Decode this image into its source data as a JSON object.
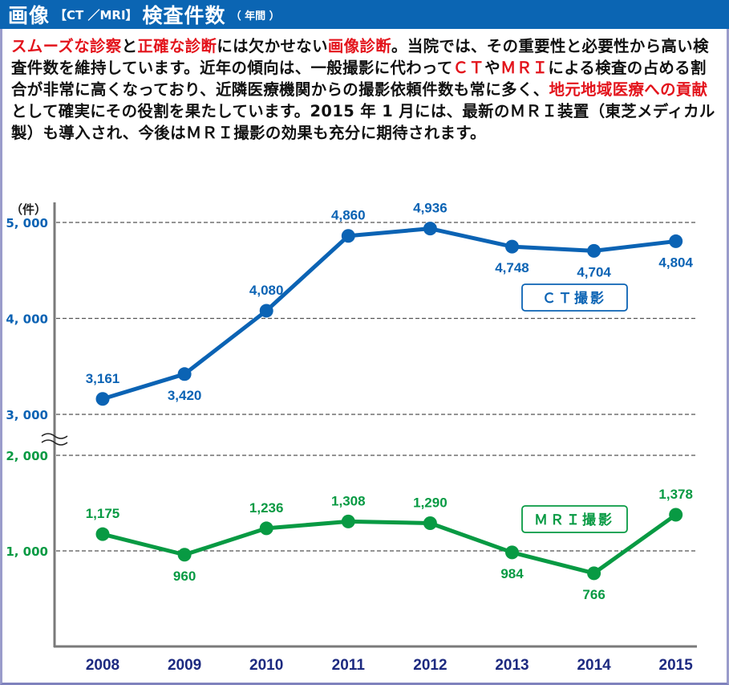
{
  "header": {
    "title_main": "画像",
    "title_modality": "【CT ／MRI】",
    "title_main2": "検査件数",
    "title_period": "（ 年間 ）"
  },
  "paragraph": [
    {
      "text": "スムーズな診察",
      "highlight": true
    },
    {
      "text": "と",
      "highlight": false
    },
    {
      "text": "正確な診断",
      "highlight": true
    },
    {
      "text": "には欠かせない",
      "highlight": false
    },
    {
      "text": "画像診断",
      "highlight": true
    },
    {
      "text": "。当院では、その重要性と必要性から高い検査件数を維持しています。近年の傾向は、一般撮影に代わって",
      "highlight": false
    },
    {
      "text": "ＣＴ",
      "highlight": true
    },
    {
      "text": "や",
      "highlight": false
    },
    {
      "text": "ＭＲＩ",
      "highlight": true
    },
    {
      "text": "による検査の占める割合が非常に高くなっており、近隣医療機関からの撮影依頼件数も常に多く、",
      "highlight": false
    },
    {
      "text": "地元地域医療への貢献",
      "highlight": true
    },
    {
      "text": "として確実にその役割を果たしています。2015 年 1 月には、最新のＭＲＩ装置（東芝メディカル製）も導入され、今後はＭＲＩ撮影の効果も充分に期待されます。",
      "highlight": false
    }
  ],
  "colors": {
    "header_bg": "#0b65b3",
    "ct": "#0b63b4",
    "mri": "#089a43",
    "year_label": "#1d2a80",
    "highlight": "#e3141c",
    "axis": "#7a7a7a",
    "grid": "#555555"
  },
  "chart_data": {
    "type": "line",
    "title": "画像【CT／MRI】検査件数（年間）",
    "ylabel": "（件）",
    "xlabel": "",
    "categories": [
      "2008",
      "2009",
      "2010",
      "2011",
      "2012",
      "2013",
      "2014",
      "2015"
    ],
    "axis_break": {
      "from": 2000,
      "to": 3000
    },
    "y_ticks": [
      {
        "value": 5000,
        "label": "5, 000",
        "series": "ct"
      },
      {
        "value": 4000,
        "label": "4, 000",
        "series": "ct"
      },
      {
        "value": 3000,
        "label": "3, 000",
        "series": "ct"
      },
      {
        "value": 2000,
        "label": "2, 000",
        "series": "mri"
      },
      {
        "value": 1000,
        "label": "1, 000",
        "series": "mri"
      }
    ],
    "grid": true,
    "series": [
      {
        "key": "ct",
        "name": "ＣＴ撮影",
        "values": [
          3161,
          3420,
          4080,
          4860,
          4936,
          4748,
          4704,
          4804
        ],
        "labels": [
          "3,161",
          "3,420",
          "4,080",
          "4,860",
          "4,936",
          "4,748",
          "4,704",
          "4,804"
        ],
        "label_pos": [
          "above",
          "below",
          "above",
          "above",
          "above",
          "below",
          "below",
          "below"
        ]
      },
      {
        "key": "mri",
        "name": "ＭＲＩ撮影",
        "values": [
          1175,
          960,
          1236,
          1308,
          1290,
          984,
          766,
          1378
        ],
        "labels": [
          "1,175",
          "960",
          "1,236",
          "1,308",
          "1,290",
          "984",
          "766",
          "1,378"
        ],
        "label_pos": [
          "above",
          "below",
          "above",
          "above",
          "above",
          "below",
          "below",
          "above"
        ]
      }
    ],
    "legend": [
      {
        "series": "ct",
        "label": "ＣＴ撮影",
        "placement": "right, below CT line"
      },
      {
        "series": "mri",
        "label": "ＭＲＩ撮影",
        "placement": "right, above MRI line"
      }
    ]
  }
}
